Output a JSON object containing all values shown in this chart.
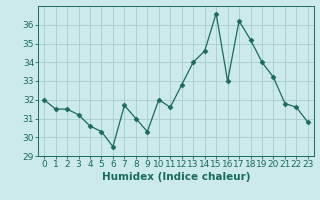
{
  "x": [
    0,
    1,
    2,
    3,
    4,
    5,
    6,
    7,
    8,
    9,
    10,
    11,
    12,
    13,
    14,
    15,
    16,
    17,
    18,
    19,
    20,
    21,
    22,
    23
  ],
  "y": [
    32.0,
    31.5,
    31.5,
    31.2,
    30.6,
    30.3,
    29.5,
    31.7,
    31.0,
    30.3,
    32.0,
    31.6,
    32.8,
    34.0,
    34.6,
    36.6,
    33.0,
    36.2,
    35.2,
    34.0,
    33.2,
    31.8,
    31.6,
    30.8
  ],
  "line_color": "#1a6b5a",
  "marker": "D",
  "marker_size": 2.5,
  "bg_color": "#cceaea",
  "grid_color": "#aacccc",
  "xlabel": "Humidex (Indice chaleur)",
  "xlim": [
    -0.5,
    23.5
  ],
  "ylim": [
    29,
    37
  ],
  "yticks": [
    29,
    30,
    31,
    32,
    33,
    34,
    35,
    36
  ],
  "xticks": [
    0,
    1,
    2,
    3,
    4,
    5,
    6,
    7,
    8,
    9,
    10,
    11,
    12,
    13,
    14,
    15,
    16,
    17,
    18,
    19,
    20,
    21,
    22,
    23
  ],
  "tick_fontsize": 6.5,
  "label_fontsize": 7.5
}
